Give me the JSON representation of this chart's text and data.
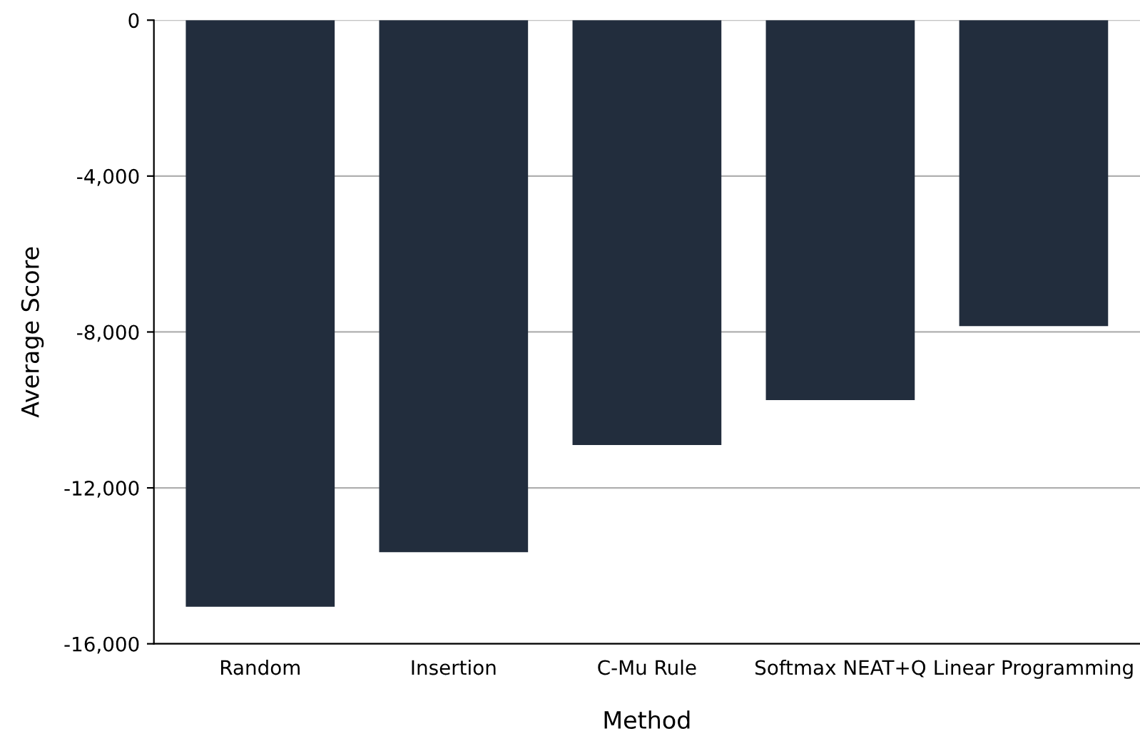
{
  "chart_data": {
    "type": "bar",
    "xlabel": "Method",
    "ylabel": "Average Score",
    "categories": [
      "Random",
      "Insertion",
      "C-Mu Rule",
      "Softmax NEAT+Q",
      "Linear Programming"
    ],
    "values": [
      -15050,
      -13650,
      -10900,
      -9750,
      -7850
    ],
    "color": "#222d3d",
    "ylim": [
      -16000,
      0
    ],
    "yticks": [
      {
        "value": -16000,
        "label": "-16,000"
      },
      {
        "value": -12000,
        "label": "-12,000"
      },
      {
        "value": -8000,
        "label": "-8,000"
      },
      {
        "value": -4000,
        "label": "-4,000"
      },
      0
    ],
    "grid": "y",
    "legend": false
  }
}
